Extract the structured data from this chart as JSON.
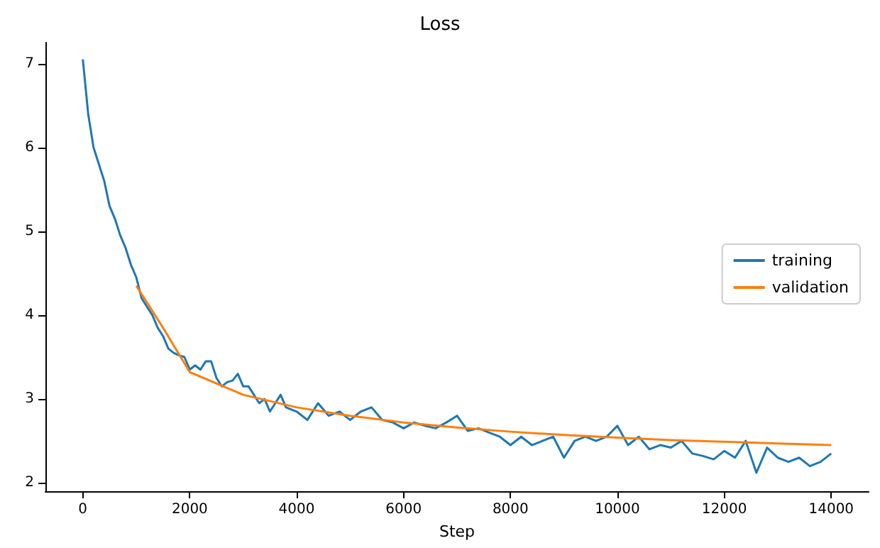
{
  "chart_data": {
    "type": "line",
    "title": "Loss",
    "xlabel": "Step",
    "legend": "right",
    "grid": false,
    "xlim": [
      -700,
      14700
    ],
    "xticks": [
      0,
      2000,
      4000,
      6000,
      8000,
      10000,
      12000,
      14000
    ],
    "ylim": [
      1.9,
      7.25
    ],
    "yticks": [
      2,
      3,
      4,
      5,
      6,
      7
    ],
    "series": [
      {
        "name": "training",
        "color": "#1f77b4",
        "x": [
          0,
          100,
          200,
          300,
          400,
          500,
          600,
          700,
          800,
          900,
          1000,
          1100,
          1200,
          1300,
          1400,
          1500,
          1600,
          1700,
          1800,
          1900,
          2000,
          2100,
          2200,
          2300,
          2400,
          2500,
          2600,
          2700,
          2800,
          2900,
          3000,
          3100,
          3200,
          3300,
          3400,
          3500,
          3600,
          3700,
          3800,
          4000,
          4200,
          4400,
          4600,
          4800,
          5000,
          5200,
          5400,
          5600,
          5800,
          6000,
          6200,
          6400,
          6600,
          6800,
          7000,
          7200,
          7400,
          7600,
          7800,
          8000,
          8200,
          8400,
          8600,
          8800,
          9000,
          9200,
          9400,
          9600,
          9800,
          10000,
          10200,
          10400,
          10600,
          10800,
          11000,
          11200,
          11400,
          11600,
          11800,
          12000,
          12200,
          12400,
          12600,
          12800,
          13000,
          13200,
          13400,
          13600,
          13800,
          14000
        ],
        "values": [
          7.05,
          6.4,
          6.0,
          5.8,
          5.6,
          5.3,
          5.15,
          4.95,
          4.8,
          4.6,
          4.45,
          4.2,
          4.1,
          4.0,
          3.85,
          3.75,
          3.6,
          3.55,
          3.52,
          3.5,
          3.35,
          3.4,
          3.35,
          3.45,
          3.45,
          3.25,
          3.15,
          3.2,
          3.22,
          3.3,
          3.15,
          3.15,
          3.05,
          2.95,
          3.0,
          2.85,
          2.95,
          3.05,
          2.9,
          2.85,
          2.75,
          2.95,
          2.8,
          2.85,
          2.75,
          2.85,
          2.9,
          2.75,
          2.72,
          2.65,
          2.72,
          2.68,
          2.65,
          2.72,
          2.8,
          2.62,
          2.65,
          2.6,
          2.55,
          2.45,
          2.55,
          2.45,
          2.5,
          2.55,
          2.3,
          2.5,
          2.55,
          2.5,
          2.55,
          2.68,
          2.45,
          2.55,
          2.4,
          2.45,
          2.42,
          2.5,
          2.35,
          2.32,
          2.28,
          2.38,
          2.3,
          2.5,
          2.12,
          2.42,
          2.3,
          2.25,
          2.3,
          2.2,
          2.25,
          2.35
        ]
      },
      {
        "name": "validation",
        "color": "#ff7f0e",
        "x": [
          1000,
          1500,
          2000,
          3000,
          4000,
          5000,
          6000,
          7000,
          8000,
          9000,
          10000,
          11000,
          12000,
          13000,
          14000
        ],
        "values": [
          4.35,
          3.85,
          3.32,
          3.05,
          2.9,
          2.8,
          2.72,
          2.66,
          2.61,
          2.57,
          2.54,
          2.51,
          2.49,
          2.47,
          2.45
        ]
      }
    ]
  }
}
